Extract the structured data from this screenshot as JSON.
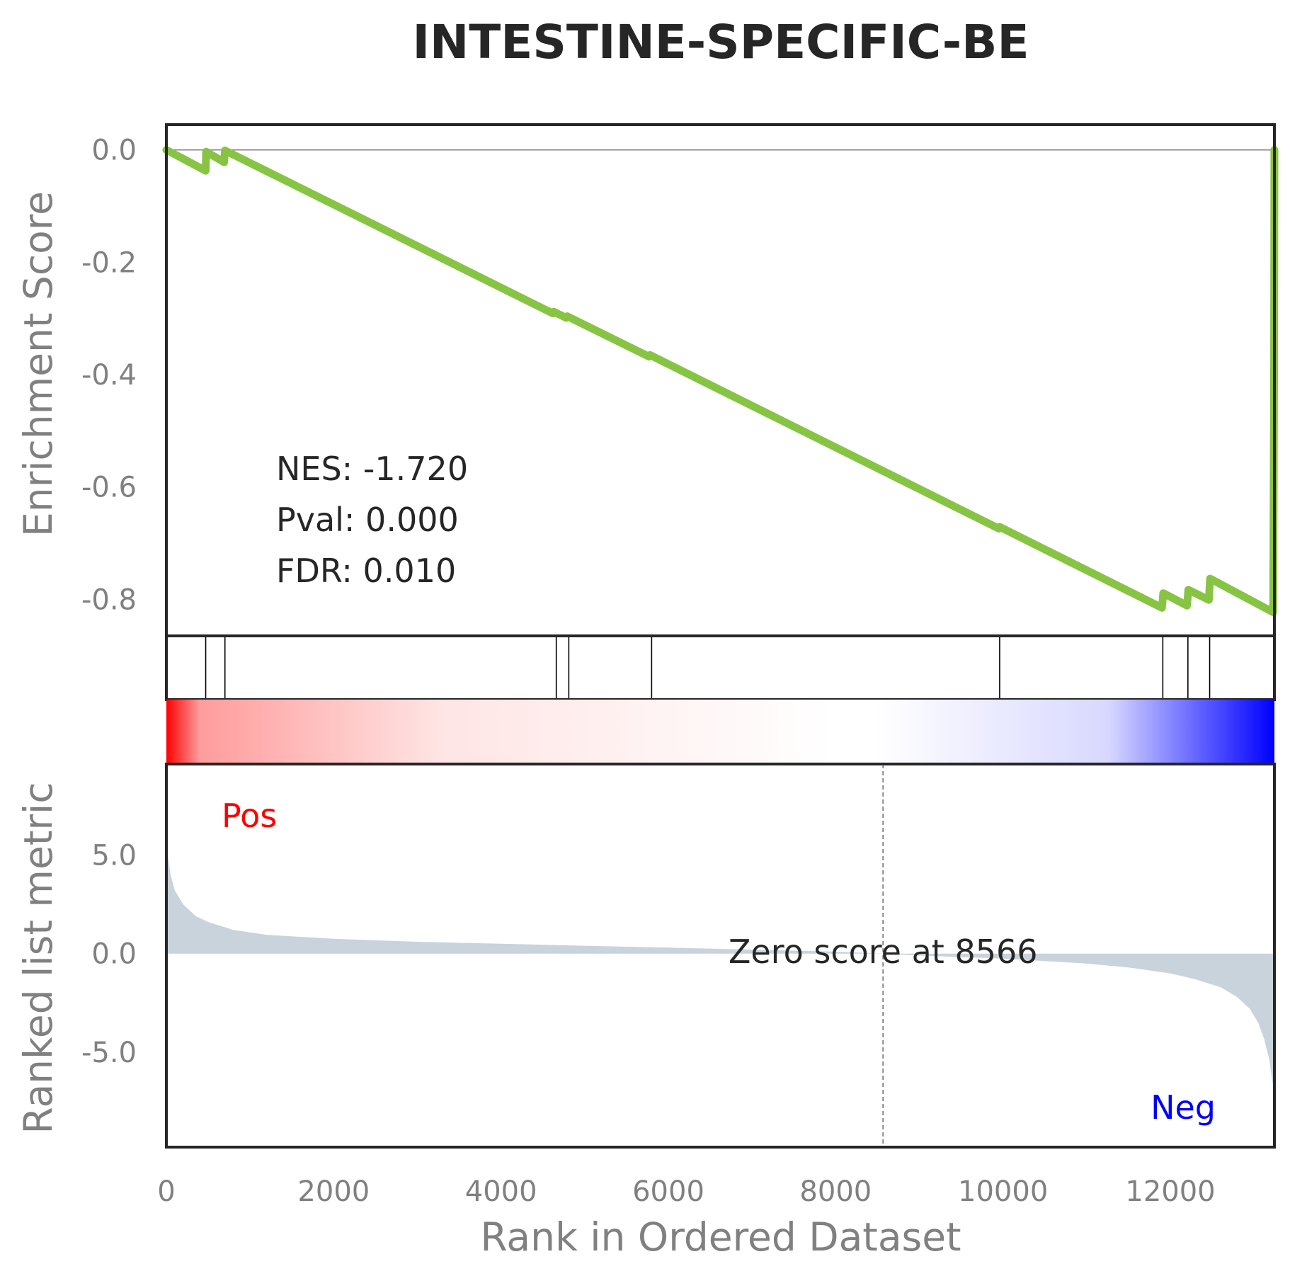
{
  "chart_data": {
    "type": "line",
    "title": "INTESTINE-SPECIFIC-BE",
    "xlabel": "Rank in Ordered Dataset",
    "xlim": [
      0,
      13244
    ],
    "x_ticks": [
      0,
      2000,
      4000,
      6000,
      8000,
      10000,
      12000
    ],
    "enrichment_panel": {
      "ylabel": "Enrichment Score",
      "ylim": [
        -0.865,
        0.045
      ],
      "y_ticks": [
        0.0,
        -0.2,
        -0.4,
        -0.6,
        -0.8
      ],
      "line_color": "#88c444",
      "series": [
        {
          "x": [
            0,
            470,
            475,
            690,
            700,
            4620,
            4630,
            4780,
            4790,
            5770,
            5780,
            9950,
            9960,
            11900,
            11915,
            12200,
            12215,
            12460,
            12475,
            13230,
            13240,
            13244
          ],
          "y": [
            0.0,
            -0.037,
            -0.003,
            -0.022,
            -0.001,
            -0.291,
            -0.288,
            -0.299,
            -0.296,
            -0.368,
            -0.365,
            -0.674,
            -0.671,
            -0.815,
            -0.789,
            -0.811,
            -0.783,
            -0.801,
            -0.763,
            -0.823,
            -0.4,
            0.0
          ]
        }
      ],
      "stats": {
        "nes": "NES: -1.720",
        "pval": "Pval: 0.000",
        "fdr": "FDR: 0.010"
      }
    },
    "hits": [
      470,
      700,
      4660,
      4810,
      5800,
      9960,
      11910,
      12210,
      12470
    ],
    "heatmap": {
      "low_color": "#ff0000",
      "mid_color": "#ffffff",
      "high_color": "#0000ff"
    },
    "rank_panel": {
      "ylabel": "Ranked list metric",
      "ylim": [
        -9.8,
        9.6
      ],
      "y_ticks": [
        5.0,
        0.0,
        -5.0
      ],
      "fill_color": "#c8d3dc",
      "x": [
        0,
        20,
        50,
        100,
        200,
        350,
        500,
        800,
        1200,
        2000,
        3000,
        4000,
        5000,
        6000,
        7000,
        8000,
        8566,
        9000,
        10000,
        11000,
        11500,
        12000,
        12300,
        12600,
        12800,
        12950,
        13050,
        13120,
        13180,
        13220,
        13244
      ],
      "y": [
        5.9,
        4.9,
        4.0,
        3.2,
        2.5,
        1.9,
        1.6,
        1.2,
        0.95,
        0.75,
        0.6,
        0.5,
        0.4,
        0.3,
        0.2,
        0.1,
        0.0,
        -0.1,
        -0.25,
        -0.5,
        -0.7,
        -1.0,
        -1.3,
        -1.7,
        -2.2,
        -2.8,
        -3.5,
        -4.3,
        -5.3,
        -6.5,
        -7.5
      ],
      "zero_score_x": 8566,
      "zero_label": "Zero score at 8566",
      "pos_label": "Pos",
      "neg_label": "Neg"
    }
  }
}
